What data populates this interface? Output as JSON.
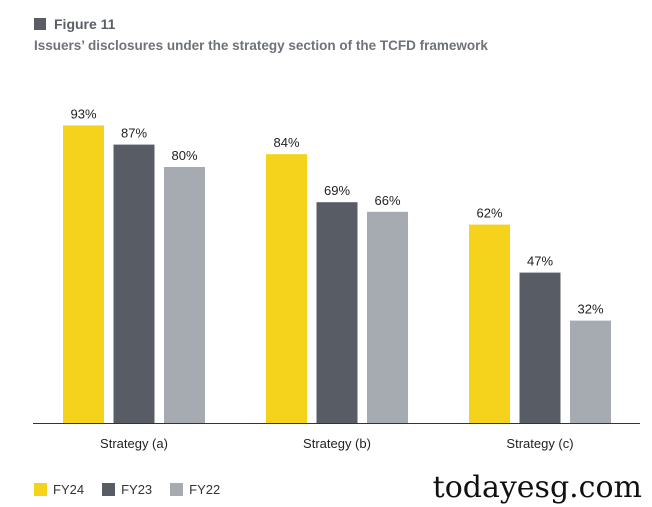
{
  "figure": {
    "label": "Figure 11",
    "title": "Issuers’ disclosures under the strategy section of the TCFD framework"
  },
  "colors": {
    "FY24": "#f5d21c",
    "FY23": "#575c65",
    "FY22": "#a6abb1",
    "header_square": "#5a5f66",
    "axis": "#333333"
  },
  "chart_data": {
    "type": "bar",
    "title": "Issuers’ disclosures under the strategy section of the TCFD framework",
    "categories": [
      "Strategy (a)",
      "Strategy (b)",
      "Strategy (c)"
    ],
    "series": [
      {
        "name": "FY24",
        "values": [
          93,
          84,
          62
        ],
        "labels": [
          "93%",
          "84%",
          "62%"
        ]
      },
      {
        "name": "FY23",
        "values": [
          87,
          69,
          47
        ],
        "labels": [
          "87%",
          "69%",
          "47%"
        ]
      },
      {
        "name": "FY22",
        "values": [
          80,
          66,
          32
        ],
        "labels": [
          "80%",
          "66%",
          "32%"
        ]
      }
    ],
    "xlabel": "",
    "ylabel": "",
    "ylim": [
      0,
      100
    ],
    "grid": false,
    "legend": "bottom-left",
    "unit": "%"
  },
  "legend": [
    {
      "label": "FY24",
      "color": "#f5d21c"
    },
    {
      "label": "FY23",
      "color": "#575c65"
    },
    {
      "label": "FY22",
      "color": "#a6abb1"
    }
  ],
  "watermark": "todayesg.com"
}
